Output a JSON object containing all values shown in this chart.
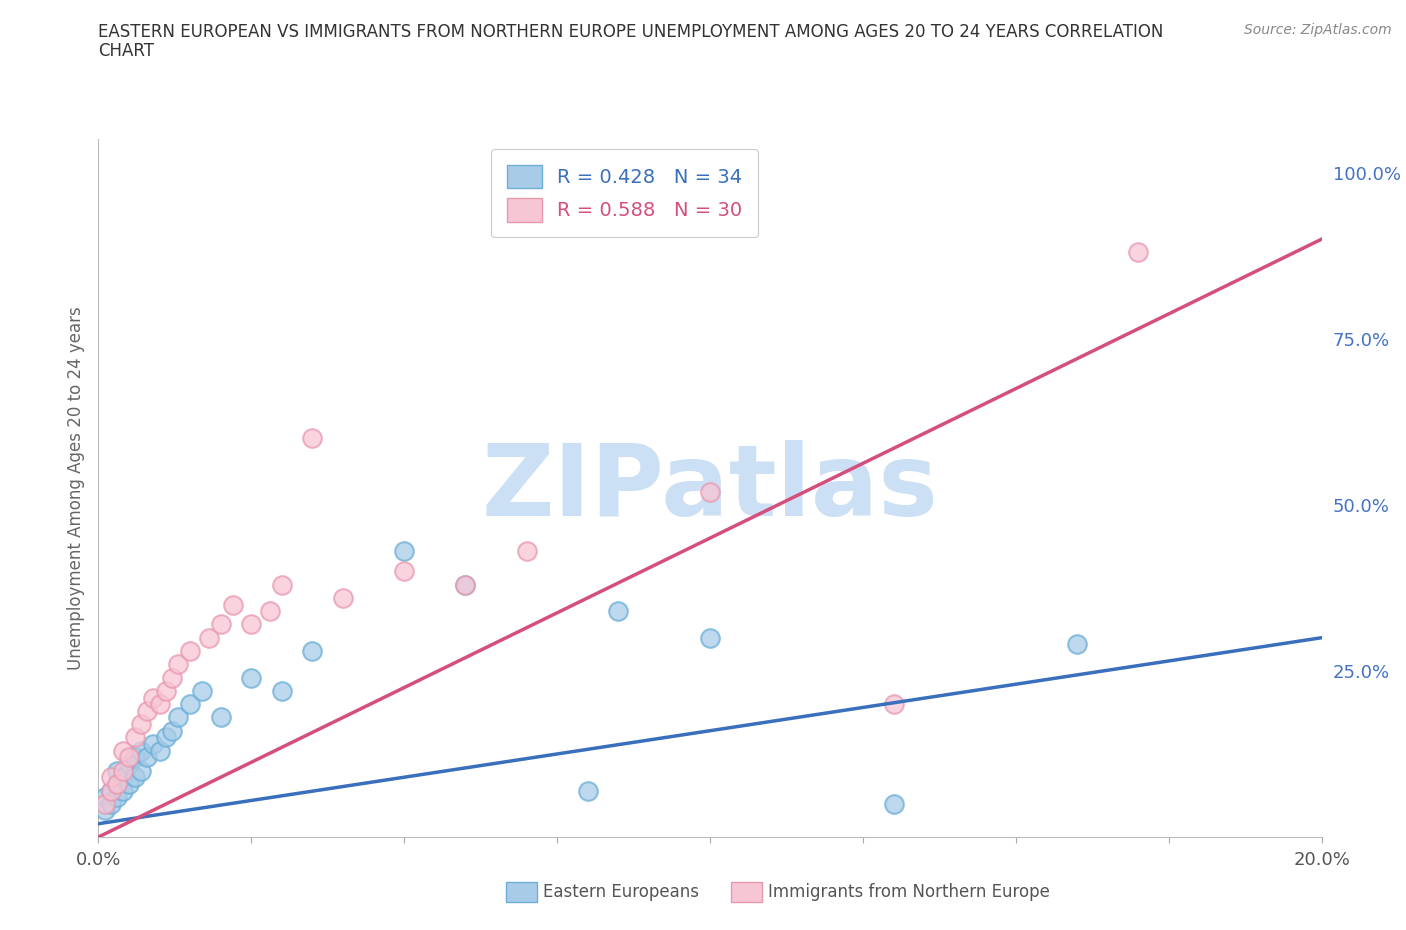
{
  "title_line1": "EASTERN EUROPEAN VS IMMIGRANTS FROM NORTHERN EUROPE UNEMPLOYMENT AMONG AGES 20 TO 24 YEARS CORRELATION",
  "title_line2": "CHART",
  "source": "Source: ZipAtlas.com",
  "ylabel": "Unemployment Among Ages 20 to 24 years",
  "xlim": [
    0.0,
    0.2
  ],
  "ylim": [
    0.0,
    1.05
  ],
  "xticks": [
    0.0,
    0.025,
    0.05,
    0.075,
    0.1,
    0.125,
    0.15,
    0.175,
    0.2
  ],
  "ytick_right": [
    0.25,
    0.5,
    0.75,
    1.0
  ],
  "ytick_right_labels": [
    "25.0%",
    "50.0%",
    "75.0%",
    "100.0%"
  ],
  "blue_color": "#a8cce8",
  "blue_edge_color": "#6baed6",
  "pink_color": "#f7c6d4",
  "pink_edge_color": "#e899b0",
  "blue_line_color": "#3a6fbd",
  "pink_line_color": "#d44f7c",
  "blue_label": "Eastern Europeans",
  "pink_label": "Immigrants from Northern Europe",
  "blue_R": 0.428,
  "blue_N": 34,
  "pink_R": 0.588,
  "pink_N": 30,
  "blue_points_x": [
    0.001,
    0.001,
    0.002,
    0.002,
    0.003,
    0.003,
    0.003,
    0.004,
    0.004,
    0.005,
    0.005,
    0.006,
    0.006,
    0.007,
    0.007,
    0.008,
    0.009,
    0.01,
    0.011,
    0.012,
    0.013,
    0.015,
    0.017,
    0.02,
    0.025,
    0.03,
    0.035,
    0.05,
    0.06,
    0.08,
    0.085,
    0.1,
    0.13,
    0.16
  ],
  "blue_points_y": [
    0.04,
    0.06,
    0.05,
    0.07,
    0.06,
    0.08,
    0.1,
    0.07,
    0.09,
    0.08,
    0.11,
    0.09,
    0.12,
    0.1,
    0.13,
    0.12,
    0.14,
    0.13,
    0.15,
    0.16,
    0.18,
    0.2,
    0.22,
    0.18,
    0.24,
    0.22,
    0.28,
    0.43,
    0.38,
    0.07,
    0.34,
    0.3,
    0.05,
    0.29
  ],
  "pink_points_x": [
    0.001,
    0.002,
    0.002,
    0.003,
    0.004,
    0.004,
    0.005,
    0.006,
    0.007,
    0.008,
    0.009,
    0.01,
    0.011,
    0.012,
    0.013,
    0.015,
    0.018,
    0.02,
    0.022,
    0.025,
    0.028,
    0.03,
    0.035,
    0.04,
    0.05,
    0.06,
    0.07,
    0.1,
    0.13,
    0.17
  ],
  "pink_points_y": [
    0.05,
    0.07,
    0.09,
    0.08,
    0.1,
    0.13,
    0.12,
    0.15,
    0.17,
    0.19,
    0.21,
    0.2,
    0.22,
    0.24,
    0.26,
    0.28,
    0.3,
    0.32,
    0.35,
    0.32,
    0.34,
    0.38,
    0.6,
    0.36,
    0.4,
    0.38,
    0.43,
    0.52,
    0.2,
    0.88
  ],
  "blue_line_x": [
    0.0,
    0.2
  ],
  "blue_line_y": [
    0.02,
    0.3
  ],
  "pink_line_x": [
    0.0,
    0.2
  ],
  "pink_line_y": [
    0.0,
    0.9
  ],
  "watermark": "ZIPatlas",
  "watermark_color": "#cce0f5",
  "bg_color": "#ffffff",
  "grid_color": "#d8d8d8"
}
